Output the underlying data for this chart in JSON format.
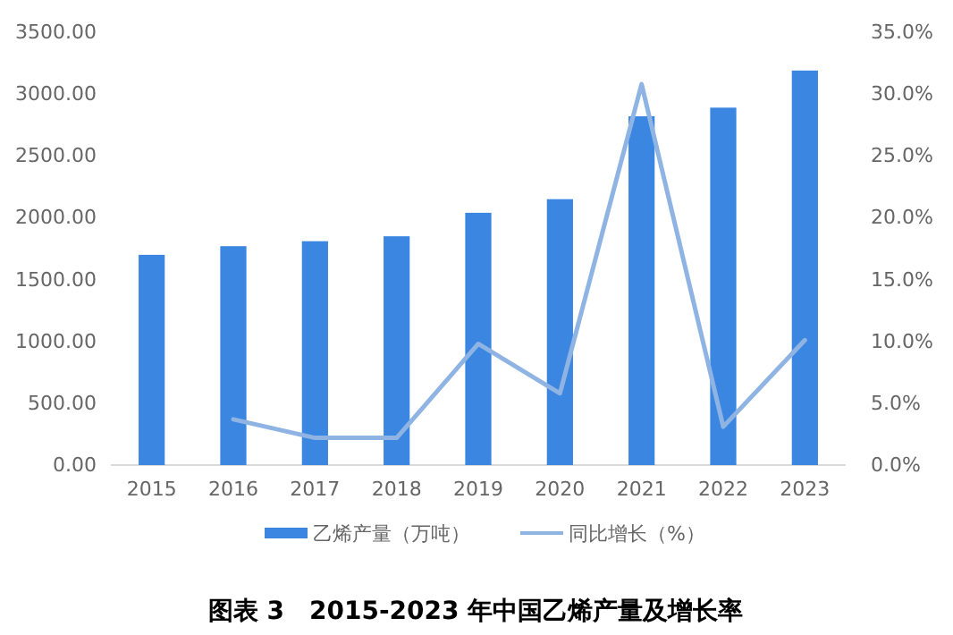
{
  "chart_data": {
    "type": "bar",
    "title": "图表 3　2015-2023 年中国乙烯产量及增长率",
    "categories": [
      "2015",
      "2016",
      "2017",
      "2018",
      "2019",
      "2020",
      "2021",
      "2022",
      "2023"
    ],
    "series": [
      {
        "name": "乙烯产量（万吨）",
        "color": "#3a86e0",
        "values": [
          1700,
          1770,
          1810,
          1850,
          2040,
          2150,
          2820,
          2890,
          3190
        ]
      },
      {
        "name": "同比增长（%）",
        "type": "line",
        "axis": "y2",
        "color": "#8fb4e3",
        "values": [
          null,
          3.7,
          2.2,
          2.2,
          9.8,
          5.8,
          30.8,
          3.1,
          10.1
        ]
      }
    ],
    "ylim": [
      0,
      3500
    ],
    "yticks": [
      {
        "value": 0,
        "label": "0.00"
      },
      {
        "value": 500,
        "label": "500.00"
      },
      {
        "value": 1000,
        "label": "1000.00"
      },
      {
        "value": 1500,
        "label": "1500.00"
      },
      {
        "value": 2000,
        "label": "2000.00"
      },
      {
        "value": 2500,
        "label": "2500.00"
      },
      {
        "value": 3000,
        "label": "3000.00"
      },
      {
        "value": 3500,
        "label": "3500.00"
      }
    ],
    "y2lim": [
      0,
      35
    ],
    "y2ticks": [
      {
        "value": 0,
        "label": "0.0%"
      },
      {
        "value": 5,
        "label": "5.0%"
      },
      {
        "value": 10,
        "label": "10.0%"
      },
      {
        "value": 15,
        "label": "15.0%"
      },
      {
        "value": 20,
        "label": "20.0%"
      },
      {
        "value": 25,
        "label": "25.0%"
      },
      {
        "value": 30,
        "label": "30.0%"
      },
      {
        "value": 35,
        "label": "35.0%"
      }
    ],
    "grid": false,
    "legend": "bottom",
    "marker": "none",
    "line_style": "solid"
  }
}
